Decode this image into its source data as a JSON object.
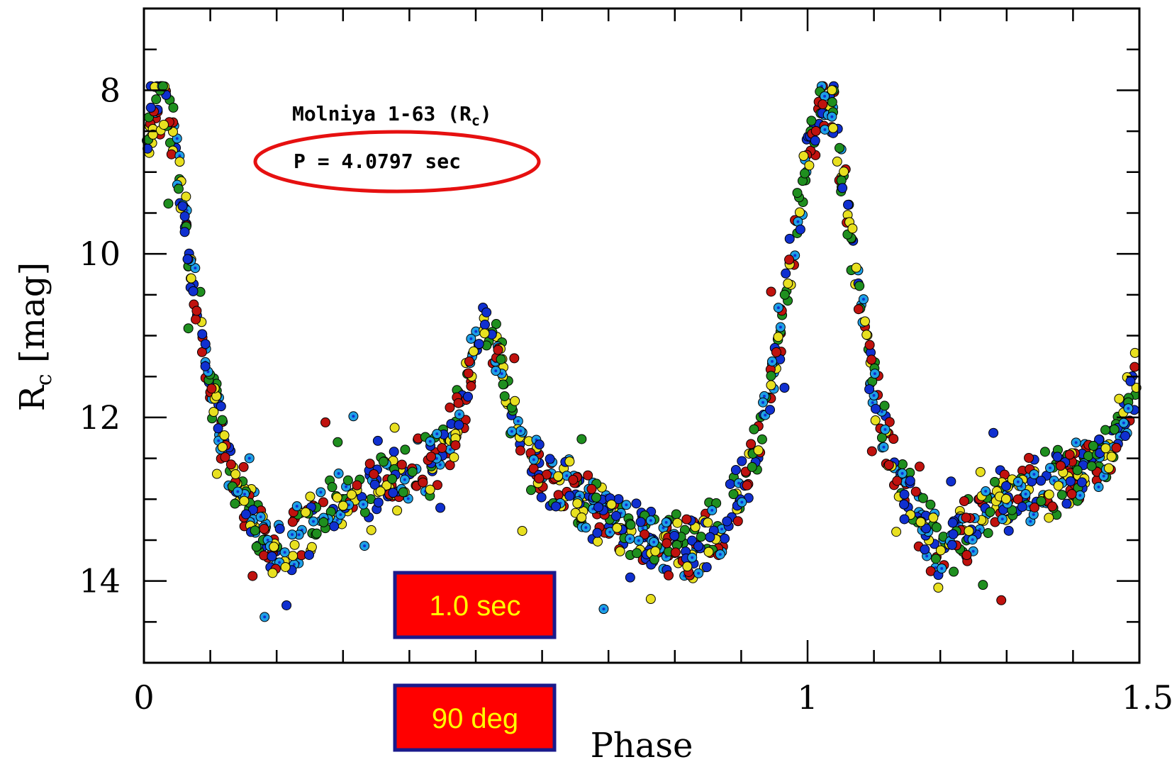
{
  "chart_data": {
    "type": "scatter",
    "title": "",
    "xlabel": "Phase",
    "ylabel_main": "R",
    "ylabel_sub": "c",
    "ylabel_unit": "[mag]",
    "xlim": [
      0,
      1.5
    ],
    "ylim": [
      15,
      7
    ],
    "y_inverted": true,
    "x_ticks": [
      {
        "value": 0,
        "label": "0"
      },
      {
        "value": 1,
        "label": "1"
      },
      {
        "value": 1.5,
        "label": "1.5"
      }
    ],
    "y_ticks": [
      {
        "value": 8,
        "label": "8"
      },
      {
        "value": 10,
        "label": "10"
      },
      {
        "value": 12,
        "label": "12"
      },
      {
        "value": 14,
        "label": "14"
      }
    ],
    "x_minor_step": 0.1,
    "y_minor_step": 0.5,
    "series_colors": [
      "#1ea0e6",
      "#e8e020",
      "#1f8f1f",
      "#c0120e",
      "#1030d0"
    ],
    "light_curve": [
      [
        0.0,
        8.9
      ],
      [
        0.02,
        8.1
      ],
      [
        0.04,
        8.3
      ],
      [
        0.06,
        9.5
      ],
      [
        0.08,
        10.6
      ],
      [
        0.1,
        11.6
      ],
      [
        0.12,
        12.3
      ],
      [
        0.15,
        13.0
      ],
      [
        0.18,
        13.5
      ],
      [
        0.2,
        13.65
      ],
      [
        0.25,
        13.3
      ],
      [
        0.3,
        13.0
      ],
      [
        0.35,
        12.85
      ],
      [
        0.4,
        12.7
      ],
      [
        0.45,
        12.45
      ],
      [
        0.48,
        11.9
      ],
      [
        0.5,
        11.2
      ],
      [
        0.51,
        10.9
      ],
      [
        0.52,
        10.9
      ],
      [
        0.54,
        11.4
      ],
      [
        0.56,
        12.1
      ],
      [
        0.58,
        12.5
      ],
      [
        0.62,
        12.8
      ],
      [
        0.66,
        13.0
      ],
      [
        0.7,
        13.2
      ],
      [
        0.75,
        13.4
      ],
      [
        0.8,
        13.55
      ],
      [
        0.83,
        13.65
      ],
      [
        0.87,
        13.3
      ],
      [
        0.9,
        12.9
      ],
      [
        0.93,
        12.2
      ],
      [
        0.96,
        10.9
      ],
      [
        0.98,
        9.8
      ],
      [
        1.0,
        8.9
      ],
      [
        1.02,
        8.1
      ],
      [
        1.04,
        8.3
      ],
      [
        1.06,
        9.5
      ],
      [
        1.08,
        10.6
      ],
      [
        1.1,
        11.6
      ],
      [
        1.12,
        12.3
      ],
      [
        1.15,
        13.0
      ],
      [
        1.18,
        13.5
      ],
      [
        1.2,
        13.65
      ],
      [
        1.25,
        13.3
      ],
      [
        1.3,
        13.0
      ],
      [
        1.35,
        12.85
      ],
      [
        1.4,
        12.7
      ],
      [
        1.45,
        12.45
      ],
      [
        1.48,
        11.9
      ],
      [
        1.5,
        11.2
      ]
    ],
    "annotations": {
      "object_name": "Molniya 1-63 (R",
      "object_sub": "c",
      "object_close": ")",
      "period": "P = 4.0797 sec"
    },
    "overlay_boxes": [
      {
        "label": "1.0 sec",
        "fill": "#ff0000",
        "border": "#1a1a8c"
      },
      {
        "label": "90 deg",
        "fill": "#ff0000",
        "border": "#1a1a8c"
      }
    ],
    "highlight_ellipse_color": "#e61010"
  }
}
